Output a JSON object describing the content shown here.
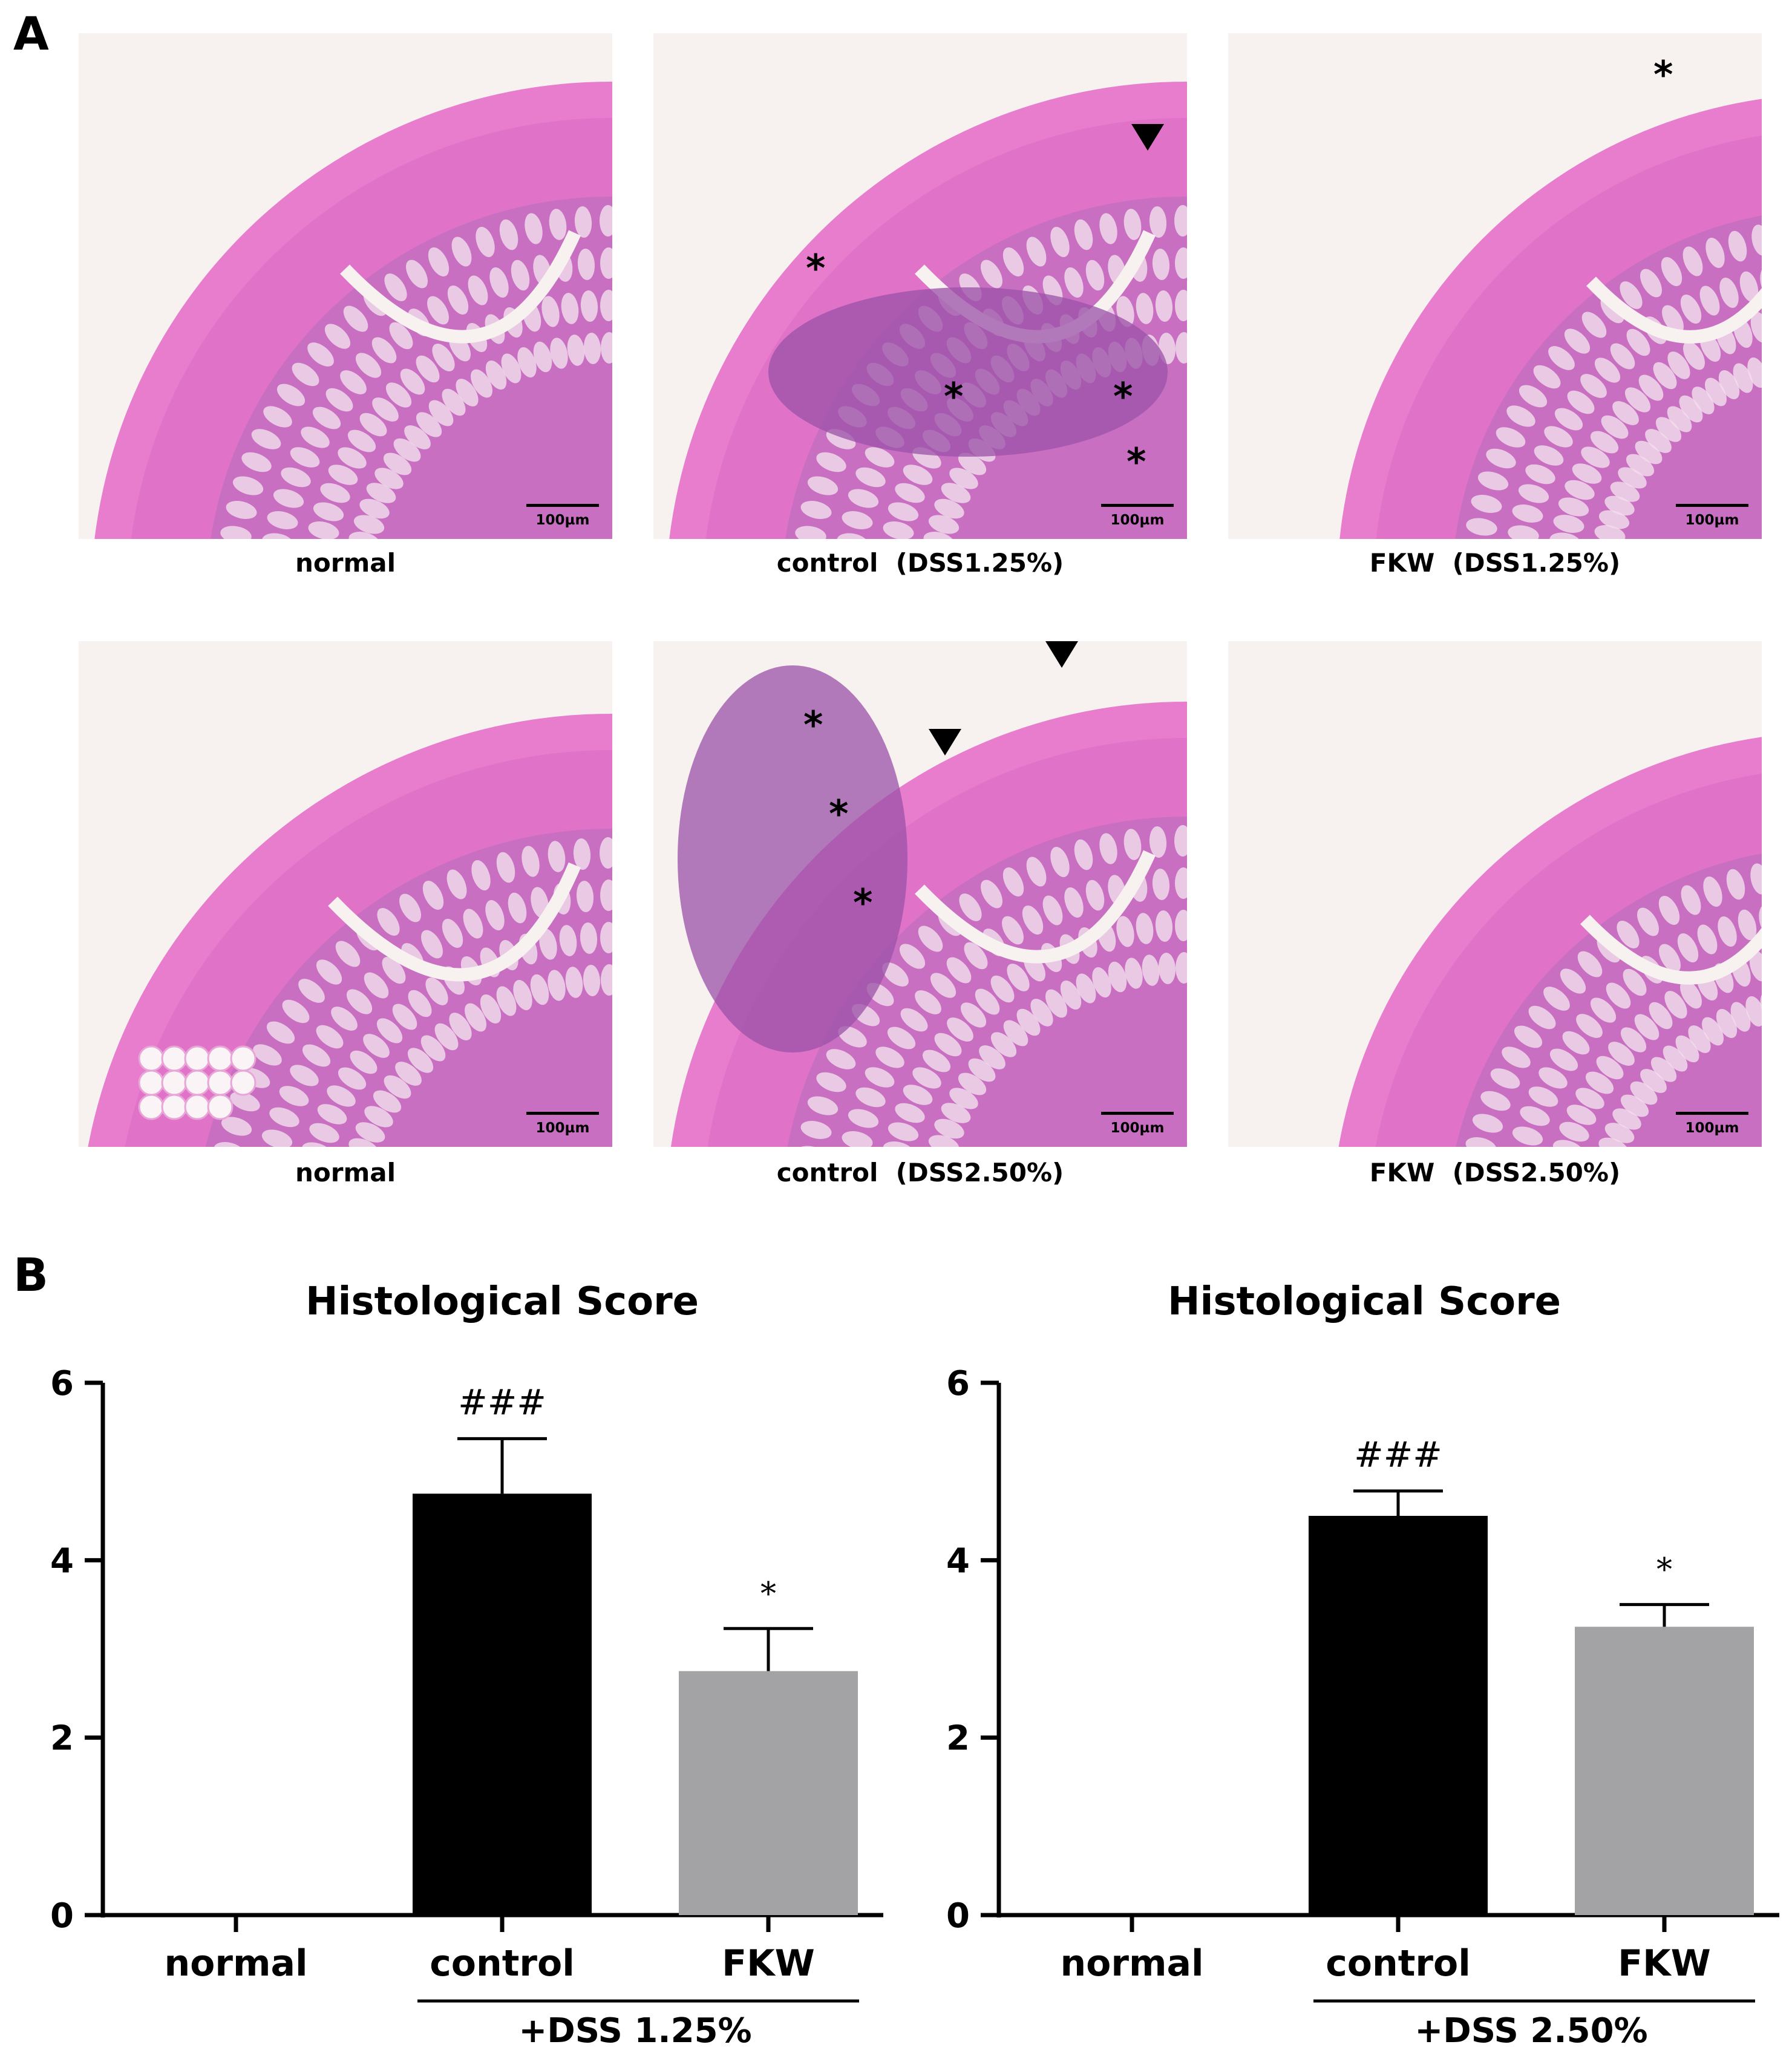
{
  "panel_a": {
    "letter": "A",
    "tiles": [
      {
        "caption": "normal",
        "scale_label": "100µm"
      },
      {
        "caption": "control  (DSS1.25%)",
        "scale_label": "100µm",
        "markers": "*"
      },
      {
        "caption": "FKW  (DSS1.25%)",
        "scale_label": "100µm",
        "markers": "*"
      },
      {
        "caption": "normal",
        "scale_label": "100µm"
      },
      {
        "caption": "control  (DSS2.50%)",
        "scale_label": "100µm",
        "markers": "*"
      },
      {
        "caption": "FKW  (DSS2.50%)",
        "scale_label": "100µm"
      }
    ],
    "colors": {
      "muscle": "#e87ccd",
      "mucosa": "#c96fc2",
      "crypt": "#f3e0ec",
      "background": "#f7f1ef",
      "inflamed": "#9b50a8"
    }
  },
  "panel_b": {
    "letter": "B",
    "chart_data": [
      {
        "type": "bar",
        "title": "Histological Score",
        "categories": [
          "normal",
          "control",
          "FKW"
        ],
        "values": [
          0,
          4.75,
          2.75
        ],
        "errors": [
          0,
          0.62,
          0.48
        ],
        "annotations": [
          "",
          "###",
          "*"
        ],
        "colors": [
          "#000000",
          "#000000",
          "#a3a3a6"
        ],
        "ylim": [
          0,
          6
        ],
        "yticks": [
          "0",
          "2",
          "4",
          "6"
        ],
        "group_label": "+DSS 1.25%",
        "grid": false
      },
      {
        "type": "bar",
        "title": "Histological Score",
        "categories": [
          "normal",
          "control",
          "FKW"
        ],
        "values": [
          0,
          4.5,
          3.25
        ],
        "errors": [
          0,
          0.28,
          0.25
        ],
        "annotations": [
          "",
          "###",
          "*"
        ],
        "colors": [
          "#000000",
          "#000000",
          "#a3a3a6"
        ],
        "ylim": [
          0,
          6
        ],
        "yticks": [
          "0",
          "2",
          "4",
          "6"
        ],
        "group_label": "+DSS 2.50%",
        "grid": false
      }
    ]
  }
}
